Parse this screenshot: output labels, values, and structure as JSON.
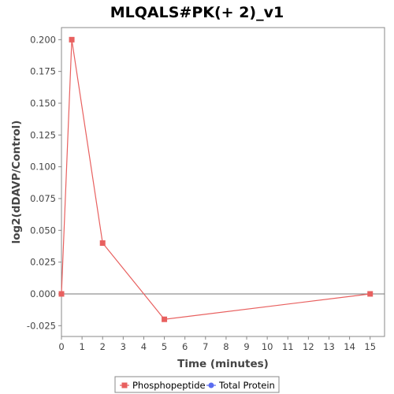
{
  "chart_data": {
    "type": "line",
    "title": "MLQALS#PK(+ 2)_v1",
    "xlabel": "Time (minutes)",
    "ylabel": "log2(dDAVP/Control)",
    "xlim": [
      0,
      15.7
    ],
    "ylim": [
      -0.0335,
      0.2095
    ],
    "xticks": [
      0,
      1,
      2,
      3,
      4,
      5,
      6,
      7,
      8,
      9,
      10,
      11,
      12,
      13,
      14,
      15
    ],
    "yticks": [
      -0.025,
      0.0,
      0.025,
      0.05,
      0.075,
      0.1,
      0.125,
      0.15,
      0.175,
      0.2
    ],
    "ytick_labels": [
      "-0.025",
      "0.000",
      "0.025",
      "0.050",
      "0.075",
      "0.100",
      "0.125",
      "0.150",
      "0.175",
      "0.200"
    ],
    "zero_line": true,
    "grid": false,
    "legend_position": "bottom",
    "series": [
      {
        "name": "Phosphopeptide",
        "color": "#e8605f",
        "marker": "square",
        "x": [
          0,
          0.5,
          2,
          5,
          15
        ],
        "y": [
          0.0,
          0.2,
          0.04,
          -0.02,
          0.0
        ]
      },
      {
        "name": "Total Protein",
        "color": "#5a6cf0",
        "marker": "circle",
        "x": [],
        "y": []
      }
    ]
  }
}
